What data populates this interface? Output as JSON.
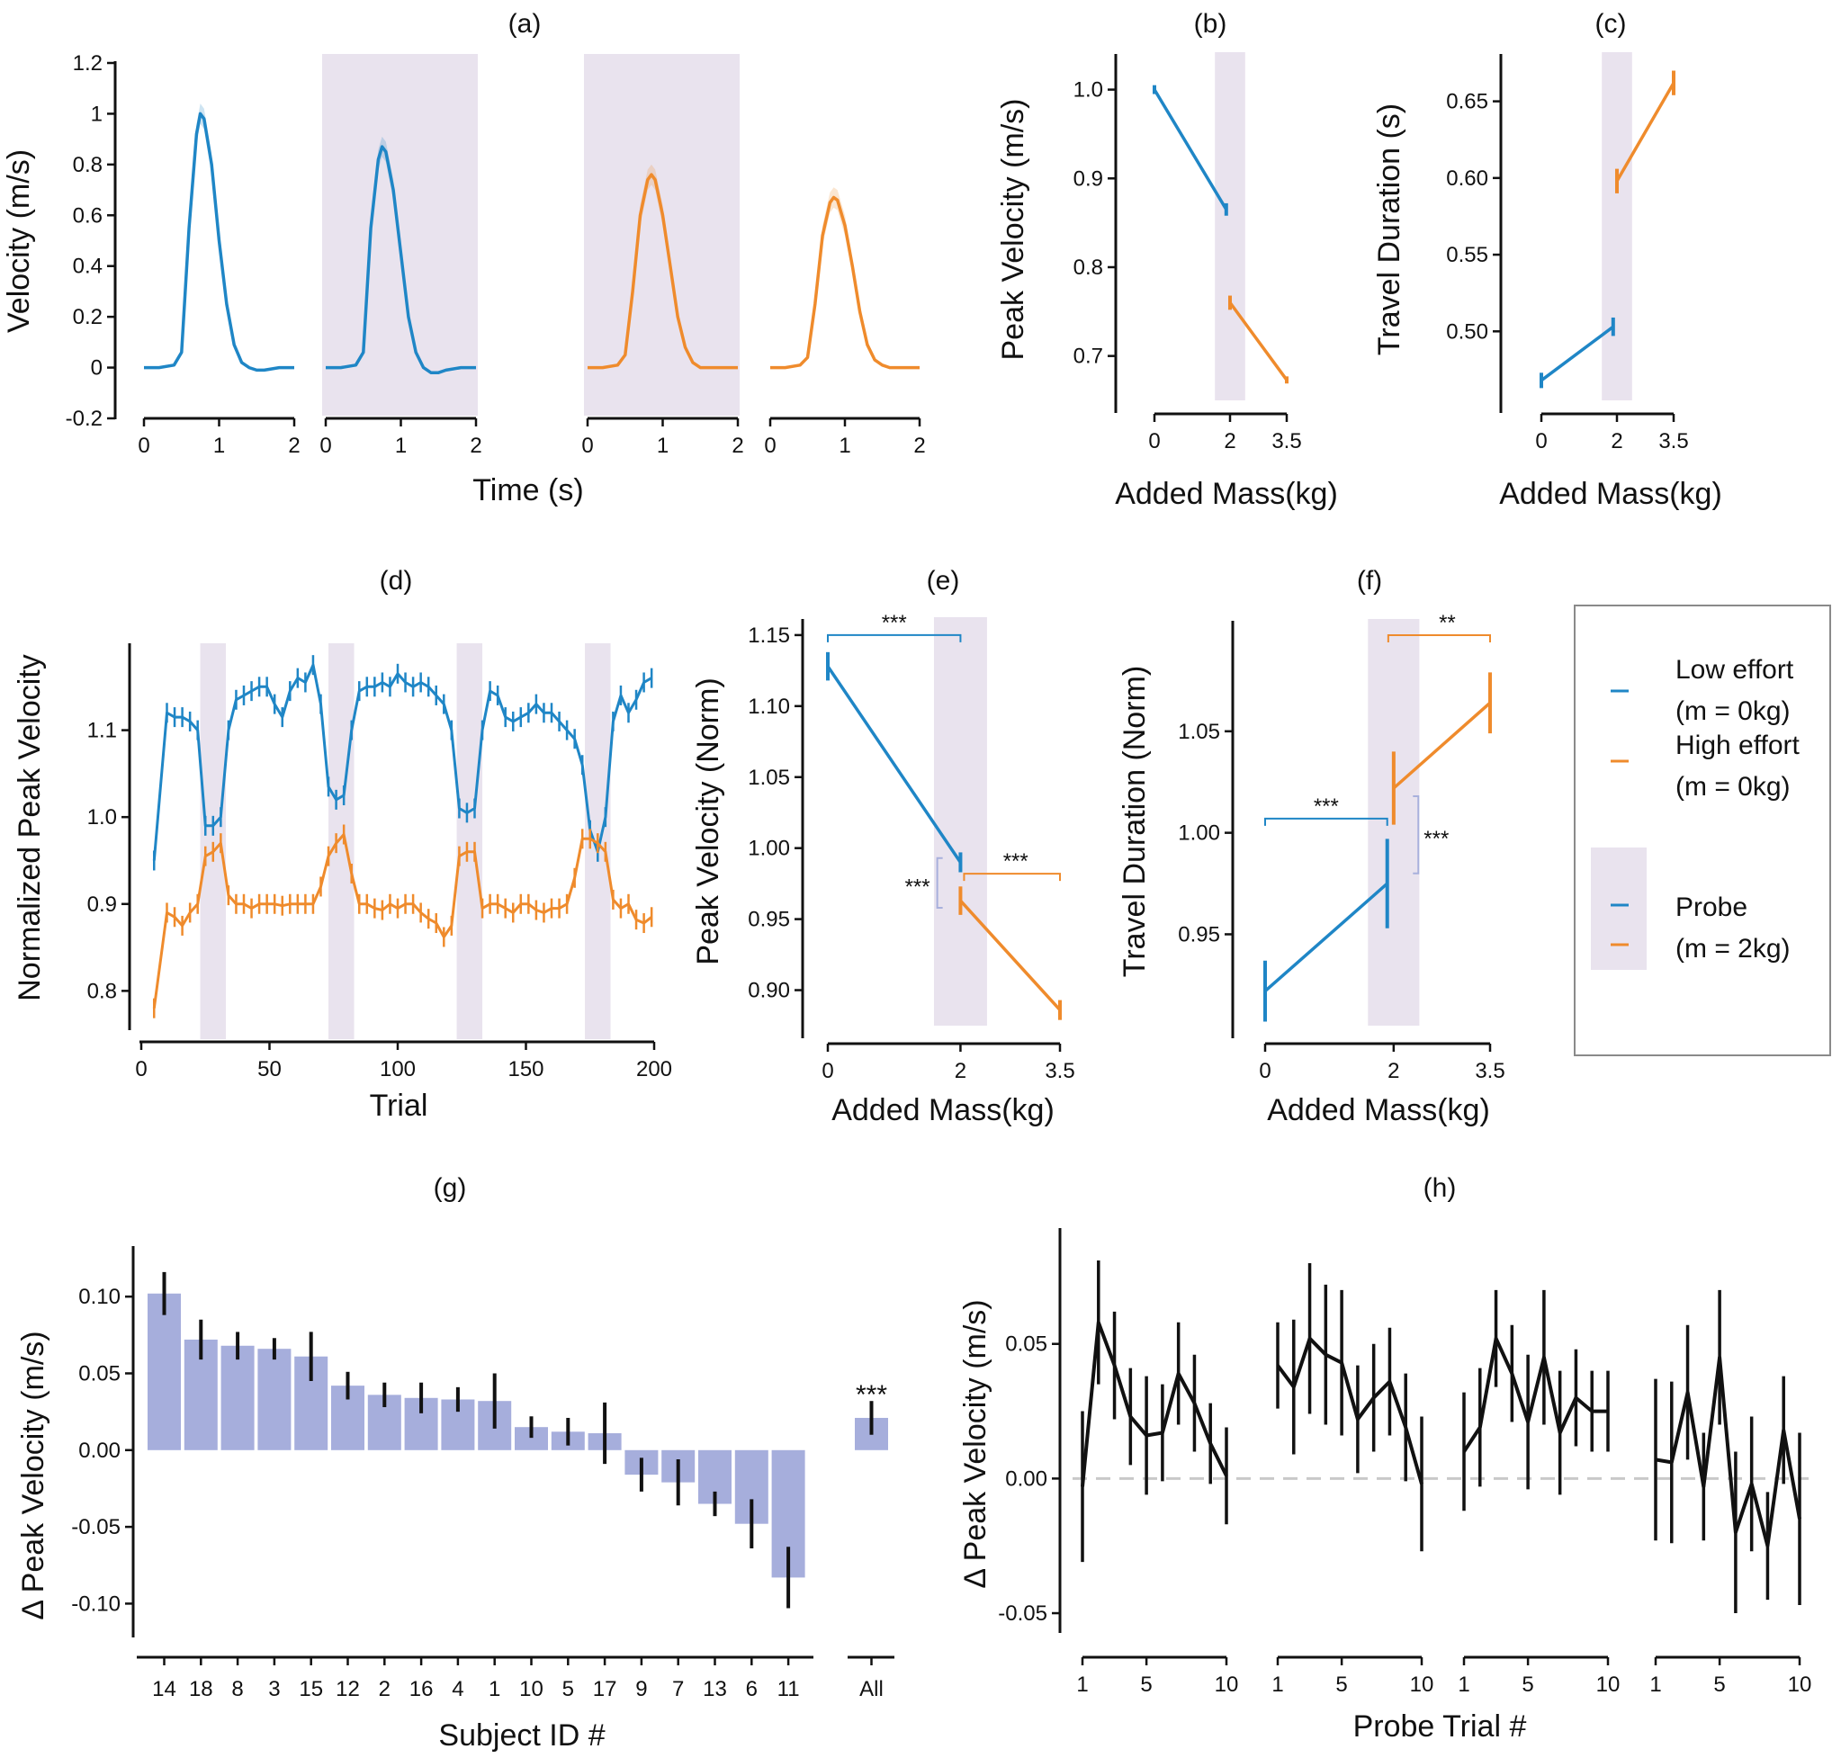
{
  "colors": {
    "low": "#1f86c6",
    "high": "#ef8b2c",
    "probe": "#e9e3ee",
    "bar": "#a6aedc",
    "black": "#111111",
    "zero": "#c9c9c9",
    "legendProbe": "#a8b0dc"
  },
  "legend": {
    "low_label": "Low effort",
    "low_mass": "(m = 0kg)",
    "high_label": "High effort",
    "high_mass": "(m = 0kg)",
    "probe_label": "Probe",
    "probe_mass": "(m = 2kg)"
  },
  "chart_data": [
    {
      "id": "a",
      "type": "line",
      "title": "(a)",
      "xlabel": "Time (s)",
      "ylabel": "Velocity (m/s)",
      "ylim": [
        -0.2,
        1.2
      ],
      "yticks": [
        "-0.2",
        "0",
        "0.2",
        "0.4",
        "0.6",
        "0.8",
        "1",
        "1.2"
      ],
      "xticks": [
        "0",
        "1",
        "2"
      ],
      "series": [
        {
          "condition": "low",
          "probe": false,
          "x": [
            0,
            0.2,
            0.4,
            0.5,
            0.6,
            0.7,
            0.75,
            0.8,
            0.9,
            1.0,
            1.1,
            1.2,
            1.3,
            1.4,
            1.5,
            1.6,
            1.8,
            2.0
          ],
          "y": [
            0,
            0,
            0.01,
            0.06,
            0.55,
            0.92,
            1.0,
            0.98,
            0.8,
            0.5,
            0.25,
            0.09,
            0.02,
            0,
            -0.01,
            -0.01,
            0,
            0
          ]
        },
        {
          "condition": "low",
          "probe": true,
          "x": [
            0,
            0.2,
            0.4,
            0.5,
            0.6,
            0.7,
            0.75,
            0.8,
            0.9,
            1.0,
            1.1,
            1.2,
            1.3,
            1.4,
            1.5,
            1.6,
            1.8,
            2.0
          ],
          "y": [
            0,
            0,
            0.01,
            0.06,
            0.55,
            0.82,
            0.87,
            0.85,
            0.7,
            0.45,
            0.2,
            0.06,
            0.0,
            -0.02,
            -0.02,
            -0.01,
            0,
            0
          ]
        },
        {
          "condition": "high",
          "probe": true,
          "x": [
            0,
            0.2,
            0.4,
            0.5,
            0.6,
            0.7,
            0.8,
            0.85,
            0.9,
            1.0,
            1.1,
            1.2,
            1.3,
            1.4,
            1.5,
            1.6,
            1.8,
            2.0
          ],
          "y": [
            0,
            0,
            0.01,
            0.05,
            0.3,
            0.6,
            0.74,
            0.76,
            0.74,
            0.6,
            0.4,
            0.2,
            0.08,
            0.02,
            0,
            0,
            0,
            0
          ]
        },
        {
          "condition": "high",
          "probe": false,
          "x": [
            0,
            0.2,
            0.4,
            0.5,
            0.6,
            0.7,
            0.8,
            0.85,
            0.9,
            1.0,
            1.1,
            1.2,
            1.3,
            1.4,
            1.5,
            1.6,
            1.8,
            2.0
          ],
          "y": [
            0,
            0,
            0.01,
            0.04,
            0.25,
            0.52,
            0.65,
            0.67,
            0.66,
            0.56,
            0.4,
            0.22,
            0.09,
            0.03,
            0.01,
            0,
            0,
            0
          ]
        }
      ]
    },
    {
      "id": "b",
      "type": "line",
      "title": "(b)",
      "xlabel": "Added Mass(kg)",
      "ylabel": "Peak Velocity (m/s)",
      "ylim": [
        0.65,
        1.03
      ],
      "yticks": [
        "0.7",
        "0.8",
        "0.9",
        "1.0"
      ],
      "xticks": [
        "0",
        "2",
        "3.5"
      ],
      "series": [
        {
          "condition": "low",
          "x": [
            0,
            1.9
          ],
          "y": [
            1.0,
            0.865
          ],
          "err": [
            0.005,
            0.007
          ]
        },
        {
          "condition": "high",
          "x": [
            2.0,
            3.5
          ],
          "y": [
            0.76,
            0.673
          ],
          "err": [
            0.008,
            0.004
          ]
        }
      ]
    },
    {
      "id": "c",
      "type": "line",
      "title": "(c)",
      "xlabel": "Added Mass(kg)",
      "ylabel": "Travel Duration (s)",
      "ylim": [
        0.455,
        0.675
      ],
      "yticks": [
        "0.50",
        "0.55",
        "0.60",
        "0.65"
      ],
      "xticks": [
        "0",
        "2",
        "3.5"
      ],
      "series": [
        {
          "condition": "low",
          "x": [
            0,
            1.9
          ],
          "y": [
            0.468,
            0.503
          ],
          "err": [
            0.005,
            0.006
          ]
        },
        {
          "condition": "high",
          "x": [
            2.0,
            3.5
          ],
          "y": [
            0.598,
            0.662
          ],
          "err": [
            0.008,
            0.008
          ]
        }
      ]
    },
    {
      "id": "d",
      "type": "line",
      "title": "(d)",
      "xlabel": "Trial",
      "ylabel": "Normalized Peak Velocity",
      "ylim": [
        0.76,
        1.2
      ],
      "yticks": [
        "0.8",
        "0.9",
        "1.0",
        "1.1"
      ],
      "xticks": [
        "0",
        "50",
        "100",
        "150",
        "200"
      ],
      "probe_ranges": [
        [
          23,
          33
        ],
        [
          73,
          83
        ],
        [
          123,
          133
        ],
        [
          173,
          183
        ]
      ],
      "series": [
        {
          "condition": "low",
          "x": [
            5,
            10,
            13,
            16,
            19,
            22,
            25,
            28,
            31,
            34,
            37,
            40,
            43,
            46,
            49,
            52,
            55,
            58,
            61,
            64,
            67,
            70,
            73,
            76,
            79,
            82,
            85,
            88,
            91,
            94,
            97,
            100,
            103,
            106,
            109,
            112,
            115,
            118,
            121,
            124,
            127,
            130,
            133,
            136,
            139,
            142,
            145,
            148,
            151,
            154,
            157,
            160,
            163,
            166,
            169,
            172,
            175,
            178,
            181,
            184,
            187,
            190,
            193,
            196,
            199
          ],
          "y": [
            0.95,
            1.12,
            1.115,
            1.115,
            1.11,
            1.1,
            0.99,
            0.99,
            1.0,
            1.1,
            1.135,
            1.14,
            1.145,
            1.15,
            1.15,
            1.13,
            1.115,
            1.145,
            1.16,
            1.155,
            1.175,
            1.13,
            1.035,
            1.02,
            1.025,
            1.1,
            1.145,
            1.15,
            1.15,
            1.155,
            1.15,
            1.165,
            1.155,
            1.15,
            1.155,
            1.15,
            1.14,
            1.13,
            1.1,
            1.01,
            1.005,
            1.01,
            1.1,
            1.145,
            1.14,
            1.115,
            1.11,
            1.115,
            1.12,
            1.13,
            1.12,
            1.12,
            1.11,
            1.1,
            1.09,
            1.06,
            0.985,
            0.96,
            1.0,
            1.11,
            1.14,
            1.12,
            1.135,
            1.155,
            1.16
          ]
        },
        {
          "condition": "high",
          "x": [
            5,
            10,
            13,
            16,
            19,
            22,
            25,
            28,
            31,
            34,
            37,
            40,
            43,
            46,
            49,
            52,
            55,
            58,
            61,
            64,
            67,
            70,
            73,
            76,
            79,
            82,
            85,
            88,
            91,
            94,
            97,
            100,
            103,
            106,
            109,
            112,
            115,
            118,
            121,
            124,
            127,
            130,
            133,
            136,
            139,
            142,
            145,
            148,
            151,
            154,
            157,
            160,
            163,
            166,
            169,
            172,
            175,
            178,
            181,
            184,
            187,
            190,
            193,
            196,
            199
          ],
          "y": [
            0.78,
            0.89,
            0.885,
            0.875,
            0.89,
            0.9,
            0.955,
            0.96,
            0.97,
            0.91,
            0.9,
            0.9,
            0.895,
            0.9,
            0.9,
            0.9,
            0.898,
            0.9,
            0.9,
            0.9,
            0.9,
            0.92,
            0.955,
            0.97,
            0.98,
            0.935,
            0.9,
            0.9,
            0.895,
            0.893,
            0.9,
            0.895,
            0.9,
            0.9,
            0.89,
            0.883,
            0.878,
            0.862,
            0.875,
            0.955,
            0.96,
            0.96,
            0.895,
            0.9,
            0.9,
            0.895,
            0.89,
            0.9,
            0.9,
            0.893,
            0.89,
            0.895,
            0.895,
            0.9,
            0.93,
            0.975,
            0.975,
            0.97,
            0.96,
            0.905,
            0.895,
            0.9,
            0.882,
            0.878,
            0.885
          ]
        }
      ]
    },
    {
      "id": "e",
      "type": "line",
      "title": "(e)",
      "xlabel": "Added Mass(kg)",
      "ylabel": "Peak Velocity (Norm)",
      "ylim": [
        0.875,
        1.155
      ],
      "yticks": [
        "0.90",
        "0.95",
        "1.00",
        "1.05",
        "1.10",
        "1.15"
      ],
      "xticks": [
        "0",
        "2",
        "3.5"
      ],
      "series": [
        {
          "condition": "low",
          "x": [
            0,
            2.0
          ],
          "y": [
            1.128,
            0.99
          ],
          "err": [
            0.01,
            0.007
          ]
        },
        {
          "condition": "high",
          "x": [
            2.0,
            3.5
          ],
          "y": [
            0.963,
            0.886
          ],
          "err": [
            0.01,
            0.007
          ]
        }
      ],
      "annotations": [
        "***",
        "***",
        "***"
      ]
    },
    {
      "id": "f",
      "type": "line",
      "title": "(f)",
      "xlabel": "Added Mass(kg)",
      "ylabel": "Travel Duration (Norm)",
      "ylim": [
        0.905,
        1.1
      ],
      "yticks": [
        "0.95",
        "1.00",
        "1.05"
      ],
      "xticks": [
        "0",
        "2",
        "3.5"
      ],
      "series": [
        {
          "condition": "low",
          "x": [
            0,
            1.9
          ],
          "y": [
            0.922,
            0.975
          ],
          "err": [
            0.015,
            0.022
          ]
        },
        {
          "condition": "high",
          "x": [
            2.0,
            3.5
          ],
          "y": [
            1.022,
            1.064
          ],
          "err": [
            0.018,
            0.015
          ]
        }
      ],
      "annotations": [
        "**",
        "***",
        "***"
      ]
    },
    {
      "id": "g",
      "type": "bar",
      "title": "(g)",
      "xlabel": "Subject ID #",
      "ylabel": "Δ Peak Velocity (m/s)",
      "ylim": [
        -0.115,
        0.13
      ],
      "yticks": [
        "-0.10",
        "-0.05",
        "0.00",
        "0.05",
        "0.10"
      ],
      "categories": [
        "14",
        "18",
        "8",
        "3",
        "15",
        "12",
        "2",
        "16",
        "4",
        "1",
        "10",
        "5",
        "17",
        "9",
        "7",
        "13",
        "6",
        "11"
      ],
      "values": [
        0.102,
        0.072,
        0.068,
        0.066,
        0.061,
        0.042,
        0.036,
        0.034,
        0.033,
        0.032,
        0.015,
        0.012,
        0.011,
        -0.016,
        -0.021,
        -0.035,
        -0.048,
        -0.083
      ],
      "errors": [
        0.014,
        0.013,
        0.009,
        0.007,
        0.016,
        0.009,
        0.008,
        0.01,
        0.008,
        0.018,
        0.007,
        0.009,
        0.02,
        0.011,
        0.015,
        0.008,
        0.016,
        0.02
      ],
      "summary": {
        "category": "All",
        "value": 0.021,
        "error": 0.011,
        "annotation": "***"
      }
    },
    {
      "id": "h",
      "type": "line",
      "title": "(h)",
      "xlabel": "Probe Trial #",
      "ylabel": "Δ Peak Velocity (m/s)",
      "ylim": [
        -0.055,
        0.088
      ],
      "yticks": [
        "-0.05",
        "0.00",
        "0.05"
      ],
      "xticks": [
        "1",
        "5",
        "10"
      ],
      "zero_line": true,
      "series": [
        {
          "block": 1,
          "x": [
            1,
            2,
            3,
            4,
            5,
            6,
            7,
            8,
            9,
            10
          ],
          "y": [
            -0.003,
            0.058,
            0.042,
            0.023,
            0.016,
            0.017,
            0.039,
            0.028,
            0.013,
            0.001
          ],
          "err": [
            0.028,
            0.023,
            0.02,
            0.018,
            0.022,
            0.018,
            0.019,
            0.018,
            0.015,
            0.018
          ]
        },
        {
          "block": 2,
          "x": [
            1,
            2,
            3,
            4,
            5,
            6,
            7,
            8,
            9,
            10
          ],
          "y": [
            0.042,
            0.034,
            0.052,
            0.046,
            0.043,
            0.022,
            0.03,
            0.036,
            0.019,
            -0.002
          ],
          "err": [
            0.016,
            0.025,
            0.028,
            0.026,
            0.027,
            0.02,
            0.02,
            0.02,
            0.02,
            0.025
          ]
        },
        {
          "block": 3,
          "x": [
            1,
            2,
            3,
            4,
            5,
            6,
            7,
            8,
            9,
            10
          ],
          "y": [
            0.01,
            0.019,
            0.052,
            0.039,
            0.021,
            0.045,
            0.017,
            0.03,
            0.025,
            0.025
          ],
          "err": [
            0.022,
            0.022,
            0.018,
            0.018,
            0.025,
            0.025,
            0.023,
            0.018,
            0.015,
            0.015
          ]
        },
        {
          "block": 4,
          "x": [
            1,
            2,
            3,
            4,
            5,
            6,
            7,
            8,
            9,
            10
          ],
          "y": [
            0.007,
            0.006,
            0.032,
            -0.003,
            0.045,
            -0.02,
            -0.002,
            -0.025,
            0.018,
            -0.015
          ],
          "err": [
            0.03,
            0.03,
            0.025,
            0.02,
            0.025,
            0.03,
            0.025,
            0.02,
            0.02,
            0.032
          ]
        }
      ]
    }
  ]
}
